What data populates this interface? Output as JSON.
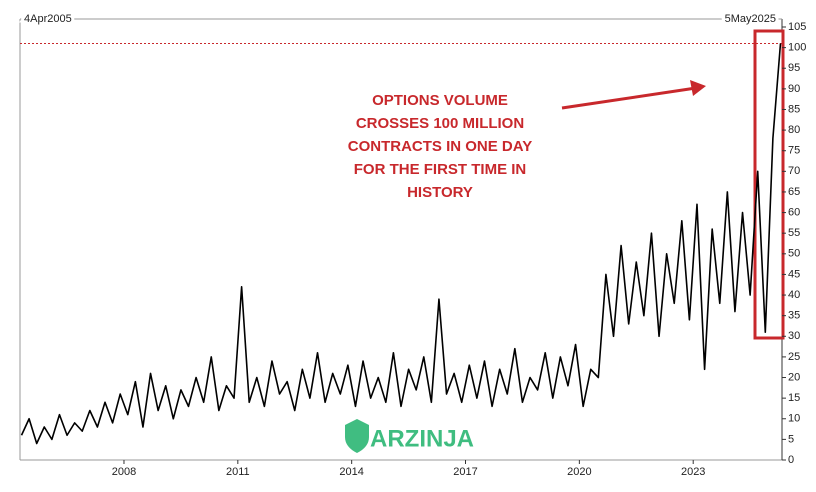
{
  "chart_data": {
    "type": "line",
    "start_label": "4Apr2005",
    "end_label": "5May2025",
    "annotation": [
      "OPTIONS VOLUME",
      "CROSSES 100 MILLION",
      "CONTRACTS IN ONE DAY",
      "FOR THE FIRST TIME IN",
      "HISTORY"
    ],
    "watermark": "ARZINJA",
    "reference_line": 101,
    "reference_color": "#c8282c",
    "xlim": [
      2005.26,
      2025.34
    ],
    "xticks": [
      2008,
      2011,
      2014,
      2017,
      2020,
      2023
    ],
    "ylim": [
      0,
      105
    ],
    "yticks": [
      0,
      5,
      10,
      15,
      20,
      25,
      30,
      35,
      40,
      45,
      50,
      55,
      60,
      65,
      70,
      75,
      80,
      85,
      90,
      95,
      100,
      105
    ],
    "x": [
      2005.3,
      2005.5,
      2005.7,
      2005.9,
      2006.1,
      2006.3,
      2006.5,
      2006.7,
      2006.9,
      2007.1,
      2007.3,
      2007.5,
      2007.7,
      2007.9,
      2008.1,
      2008.3,
      2008.5,
      2008.7,
      2008.9,
      2009.1,
      2009.3,
      2009.5,
      2009.7,
      2009.9,
      2010.1,
      2010.3,
      2010.5,
      2010.7,
      2010.9,
      2011.1,
      2011.3,
      2011.5,
      2011.7,
      2011.9,
      2012.1,
      2012.3,
      2012.5,
      2012.7,
      2012.9,
      2013.1,
      2013.3,
      2013.5,
      2013.7,
      2013.9,
      2014.1,
      2014.3,
      2014.5,
      2014.7,
      2014.9,
      2015.1,
      2015.3,
      2015.5,
      2015.7,
      2015.9,
      2016.1,
      2016.3,
      2016.5,
      2016.7,
      2016.9,
      2017.1,
      2017.3,
      2017.5,
      2017.7,
      2017.9,
      2018.1,
      2018.3,
      2018.5,
      2018.7,
      2018.9,
      2019.1,
      2019.3,
      2019.5,
      2019.7,
      2019.9,
      2020.1,
      2020.3,
      2020.5,
      2020.7,
      2020.9,
      2021.1,
      2021.3,
      2021.5,
      2021.7,
      2021.9,
      2022.1,
      2022.3,
      2022.5,
      2022.7,
      2022.9,
      2023.1,
      2023.3,
      2023.5,
      2023.7,
      2023.9,
      2024.1,
      2024.3,
      2024.5,
      2024.7,
      2024.9,
      2025.1,
      2025.3
    ],
    "series": [
      {
        "color": "#000000",
        "values": [
          6,
          10,
          4,
          8,
          5,
          11,
          6,
          9,
          7,
          12,
          8,
          14,
          9,
          16,
          11,
          19,
          8,
          21,
          12,
          18,
          10,
          17,
          13,
          20,
          14,
          25,
          12,
          18,
          15,
          42,
          14,
          20,
          13,
          24,
          16,
          19,
          12,
          22,
          15,
          26,
          14,
          21,
          16,
          23,
          13,
          24,
          15,
          20,
          14,
          26,
          13,
          22,
          17,
          25,
          14,
          39,
          16,
          21,
          14,
          23,
          15,
          24,
          13,
          22,
          16,
          27,
          14,
          20,
          17,
          26,
          15,
          25,
          18,
          28,
          13,
          22,
          20,
          45,
          30,
          52,
          33,
          48,
          35,
          55,
          30,
          50,
          38,
          58,
          34,
          62,
          22,
          56,
          38,
          65,
          36,
          60,
          40,
          70,
          31,
          78,
          101
        ]
      }
    ]
  }
}
